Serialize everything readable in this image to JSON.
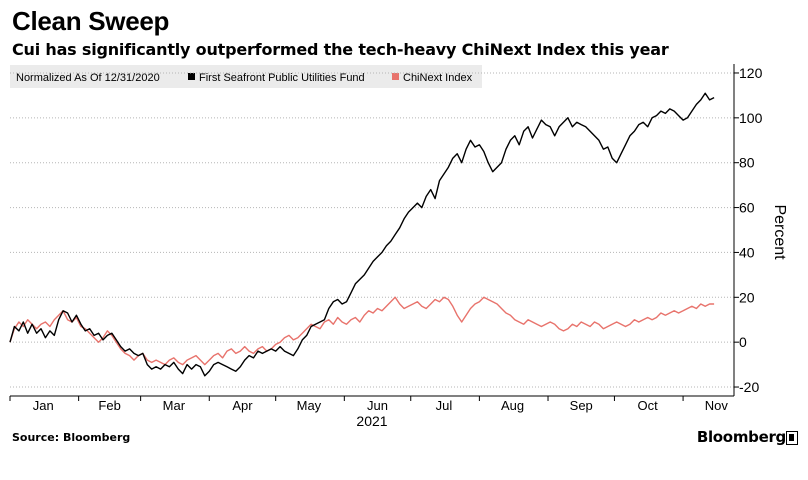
{
  "title": "Clean Sweep",
  "subtitle": "Cui has significantly outperformed the tech-heavy ChiNext Index this year",
  "source": "Source: Bloomberg",
  "brand": "Bloomberg",
  "chart_data": {
    "type": "line",
    "legend": {
      "note": "Normalized As Of 12/31/2020",
      "placement": "top-left"
    },
    "x_unit": "day index 0 = Dec 31 2020",
    "x_ticks": [
      {
        "label": "Jan",
        "x": 15
      },
      {
        "label": "Feb",
        "x": 45
      },
      {
        "label": "Mar",
        "x": 74
      },
      {
        "label": "Apr",
        "x": 105
      },
      {
        "label": "May",
        "x": 135
      },
      {
        "label": "Jun",
        "x": 166
      },
      {
        "label": "Jul",
        "x": 196
      },
      {
        "label": "Aug",
        "x": 227
      },
      {
        "label": "Sep",
        "x": 258
      },
      {
        "label": "Oct",
        "x": 288
      },
      {
        "label": "Nov",
        "x": 319
      }
    ],
    "x_minor_ticks": [
      0,
      31,
      59,
      90,
      120,
      151,
      181,
      212,
      243,
      273,
      304,
      334
    ],
    "year_label": "2021",
    "xlim": [
      0,
      327
    ],
    "ylim": [
      -24,
      124
    ],
    "yticks": [
      120,
      100,
      80,
      60,
      40,
      20,
      0,
      -20
    ],
    "ylabel": "Percent",
    "grid": "horizontal dotted",
    "series": [
      {
        "name": "First Seafront Public Utilities Fund",
        "color": "#000000",
        "points": [
          [
            0,
            0
          ],
          [
            2,
            7
          ],
          [
            4,
            5
          ],
          [
            6,
            9
          ],
          [
            8,
            4
          ],
          [
            10,
            8
          ],
          [
            12,
            4
          ],
          [
            14,
            6
          ],
          [
            16,
            2
          ],
          [
            18,
            5
          ],
          [
            20,
            3
          ],
          [
            22,
            10
          ],
          [
            24,
            14
          ],
          [
            26,
            13
          ],
          [
            28,
            9
          ],
          [
            30,
            12
          ],
          [
            32,
            8
          ],
          [
            34,
            5
          ],
          [
            36,
            6
          ],
          [
            38,
            3
          ],
          [
            40,
            4
          ],
          [
            42,
            1
          ],
          [
            44,
            3
          ],
          [
            46,
            4
          ],
          [
            48,
            1
          ],
          [
            50,
            -2
          ],
          [
            52,
            -4
          ],
          [
            54,
            -3
          ],
          [
            56,
            -5
          ],
          [
            58,
            -6
          ],
          [
            60,
            -5
          ],
          [
            62,
            -10
          ],
          [
            64,
            -12
          ],
          [
            66,
            -11
          ],
          [
            68,
            -12
          ],
          [
            70,
            -10
          ],
          [
            72,
            -11
          ],
          [
            74,
            -9
          ],
          [
            76,
            -12
          ],
          [
            78,
            -14
          ],
          [
            80,
            -10
          ],
          [
            82,
            -12
          ],
          [
            84,
            -10
          ],
          [
            86,
            -11
          ],
          [
            88,
            -15
          ],
          [
            90,
            -13
          ],
          [
            92,
            -10
          ],
          [
            94,
            -9
          ],
          [
            96,
            -10
          ],
          [
            98,
            -11
          ],
          [
            100,
            -12
          ],
          [
            102,
            -13
          ],
          [
            104,
            -11
          ],
          [
            106,
            -8
          ],
          [
            108,
            -6
          ],
          [
            110,
            -7
          ],
          [
            112,
            -4
          ],
          [
            114,
            -5
          ],
          [
            116,
            -4
          ],
          [
            118,
            -3
          ],
          [
            120,
            -4
          ],
          [
            122,
            -2
          ],
          [
            124,
            -4
          ],
          [
            126,
            -5
          ],
          [
            128,
            -6
          ],
          [
            130,
            -3
          ],
          [
            132,
            1
          ],
          [
            134,
            3
          ],
          [
            136,
            7
          ],
          [
            138,
            8
          ],
          [
            140,
            9
          ],
          [
            142,
            10
          ],
          [
            144,
            15
          ],
          [
            146,
            18
          ],
          [
            148,
            19
          ],
          [
            150,
            17
          ],
          [
            152,
            18
          ],
          [
            154,
            22
          ],
          [
            156,
            26
          ],
          [
            158,
            28
          ],
          [
            160,
            30
          ],
          [
            162,
            33
          ],
          [
            164,
            36
          ],
          [
            166,
            38
          ],
          [
            168,
            40
          ],
          [
            170,
            43
          ],
          [
            172,
            45
          ],
          [
            174,
            48
          ],
          [
            176,
            51
          ],
          [
            178,
            55
          ],
          [
            180,
            58
          ],
          [
            182,
            60
          ],
          [
            184,
            62
          ],
          [
            186,
            60
          ],
          [
            188,
            65
          ],
          [
            190,
            68
          ],
          [
            192,
            64
          ],
          [
            194,
            72
          ],
          [
            196,
            75
          ],
          [
            198,
            78
          ],
          [
            200,
            82
          ],
          [
            202,
            84
          ],
          [
            204,
            80
          ],
          [
            206,
            86
          ],
          [
            208,
            90
          ],
          [
            210,
            87
          ],
          [
            212,
            88
          ],
          [
            214,
            85
          ],
          [
            216,
            80
          ],
          [
            218,
            76
          ],
          [
            220,
            78
          ],
          [
            222,
            80
          ],
          [
            224,
            86
          ],
          [
            226,
            90
          ],
          [
            228,
            92
          ],
          [
            230,
            88
          ],
          [
            232,
            94
          ],
          [
            234,
            96
          ],
          [
            236,
            91
          ],
          [
            238,
            95
          ],
          [
            240,
            99
          ],
          [
            242,
            97
          ],
          [
            244,
            96
          ],
          [
            246,
            92
          ],
          [
            248,
            96
          ],
          [
            250,
            98
          ],
          [
            252,
            100
          ],
          [
            254,
            96
          ],
          [
            256,
            98
          ],
          [
            258,
            97
          ],
          [
            260,
            96
          ],
          [
            262,
            94
          ],
          [
            264,
            92
          ],
          [
            266,
            90
          ],
          [
            268,
            86
          ],
          [
            270,
            87
          ],
          [
            272,
            82
          ],
          [
            274,
            80
          ],
          [
            276,
            84
          ],
          [
            278,
            88
          ],
          [
            280,
            92
          ],
          [
            282,
            94
          ],
          [
            284,
            97
          ],
          [
            286,
            98
          ],
          [
            288,
            96
          ],
          [
            290,
            100
          ],
          [
            292,
            101
          ],
          [
            294,
            103
          ],
          [
            296,
            102
          ],
          [
            298,
            104
          ],
          [
            300,
            103
          ],
          [
            302,
            101
          ],
          [
            304,
            99
          ],
          [
            306,
            100
          ],
          [
            308,
            103
          ],
          [
            310,
            106
          ],
          [
            312,
            108
          ],
          [
            314,
            111
          ],
          [
            316,
            108
          ],
          [
            318,
            109
          ]
        ]
      },
      {
        "name": "ChiNext Index",
        "color": "#e8736c",
        "points": [
          [
            0,
            0
          ],
          [
            2,
            6
          ],
          [
            4,
            9
          ],
          [
            6,
            7
          ],
          [
            8,
            10
          ],
          [
            10,
            8
          ],
          [
            12,
            6
          ],
          [
            14,
            8
          ],
          [
            16,
            9
          ],
          [
            18,
            7
          ],
          [
            20,
            10
          ],
          [
            22,
            12
          ],
          [
            24,
            14
          ],
          [
            26,
            10
          ],
          [
            28,
            9
          ],
          [
            30,
            11
          ],
          [
            32,
            7
          ],
          [
            34,
            6
          ],
          [
            36,
            4
          ],
          [
            38,
            2
          ],
          [
            40,
            0
          ],
          [
            42,
            2
          ],
          [
            44,
            5
          ],
          [
            46,
            3
          ],
          [
            48,
            0
          ],
          [
            50,
            -3
          ],
          [
            52,
            -5
          ],
          [
            54,
            -6
          ],
          [
            56,
            -8
          ],
          [
            58,
            -6
          ],
          [
            60,
            -5
          ],
          [
            62,
            -8
          ],
          [
            64,
            -9
          ],
          [
            66,
            -8
          ],
          [
            68,
            -9
          ],
          [
            70,
            -10
          ],
          [
            72,
            -8
          ],
          [
            74,
            -7
          ],
          [
            76,
            -9
          ],
          [
            78,
            -10
          ],
          [
            80,
            -8
          ],
          [
            82,
            -7
          ],
          [
            84,
            -6
          ],
          [
            86,
            -8
          ],
          [
            88,
            -10
          ],
          [
            90,
            -8
          ],
          [
            92,
            -6
          ],
          [
            94,
            -5
          ],
          [
            96,
            -7
          ],
          [
            98,
            -4
          ],
          [
            100,
            -3
          ],
          [
            102,
            -5
          ],
          [
            104,
            -4
          ],
          [
            106,
            -2
          ],
          [
            108,
            -4
          ],
          [
            110,
            -5
          ],
          [
            112,
            -3
          ],
          [
            114,
            -2
          ],
          [
            116,
            -4
          ],
          [
            118,
            -3
          ],
          [
            120,
            -1
          ],
          [
            122,
            0
          ],
          [
            124,
            2
          ],
          [
            126,
            3
          ],
          [
            128,
            1
          ],
          [
            130,
            2
          ],
          [
            132,
            4
          ],
          [
            134,
            6
          ],
          [
            136,
            8
          ],
          [
            138,
            7
          ],
          [
            140,
            6
          ],
          [
            142,
            9
          ],
          [
            144,
            10
          ],
          [
            146,
            8
          ],
          [
            148,
            11
          ],
          [
            150,
            9
          ],
          [
            152,
            8
          ],
          [
            154,
            10
          ],
          [
            156,
            11
          ],
          [
            158,
            9
          ],
          [
            160,
            12
          ],
          [
            162,
            14
          ],
          [
            164,
            13
          ],
          [
            166,
            15
          ],
          [
            168,
            14
          ],
          [
            170,
            16
          ],
          [
            172,
            18
          ],
          [
            174,
            20
          ],
          [
            176,
            17
          ],
          [
            178,
            15
          ],
          [
            180,
            16
          ],
          [
            182,
            17
          ],
          [
            184,
            18
          ],
          [
            186,
            16
          ],
          [
            188,
            15
          ],
          [
            190,
            17
          ],
          [
            192,
            19
          ],
          [
            194,
            18
          ],
          [
            196,
            20
          ],
          [
            198,
            19
          ],
          [
            200,
            16
          ],
          [
            202,
            12
          ],
          [
            204,
            9
          ],
          [
            206,
            12
          ],
          [
            208,
            15
          ],
          [
            210,
            17
          ],
          [
            212,
            18
          ],
          [
            214,
            20
          ],
          [
            216,
            19
          ],
          [
            218,
            18
          ],
          [
            220,
            17
          ],
          [
            222,
            15
          ],
          [
            224,
            13
          ],
          [
            226,
            12
          ],
          [
            228,
            10
          ],
          [
            230,
            9
          ],
          [
            232,
            8
          ],
          [
            234,
            10
          ],
          [
            236,
            9
          ],
          [
            238,
            8
          ],
          [
            240,
            7
          ],
          [
            242,
            8
          ],
          [
            244,
            9
          ],
          [
            246,
            8
          ],
          [
            248,
            6
          ],
          [
            250,
            5
          ],
          [
            252,
            6
          ],
          [
            254,
            8
          ],
          [
            256,
            7
          ],
          [
            258,
            9
          ],
          [
            260,
            8
          ],
          [
            262,
            7
          ],
          [
            264,
            9
          ],
          [
            266,
            8
          ],
          [
            268,
            6
          ],
          [
            270,
            7
          ],
          [
            272,
            8
          ],
          [
            274,
            9
          ],
          [
            276,
            8
          ],
          [
            278,
            7
          ],
          [
            280,
            8
          ],
          [
            282,
            10
          ],
          [
            284,
            9
          ],
          [
            286,
            10
          ],
          [
            288,
            11
          ],
          [
            290,
            10
          ],
          [
            292,
            11
          ],
          [
            294,
            13
          ],
          [
            296,
            12
          ],
          [
            298,
            13
          ],
          [
            300,
            14
          ],
          [
            302,
            13
          ],
          [
            304,
            14
          ],
          [
            306,
            15
          ],
          [
            308,
            16
          ],
          [
            310,
            15
          ],
          [
            312,
            17
          ],
          [
            314,
            16
          ],
          [
            316,
            17
          ],
          [
            318,
            17
          ]
        ]
      }
    ]
  }
}
